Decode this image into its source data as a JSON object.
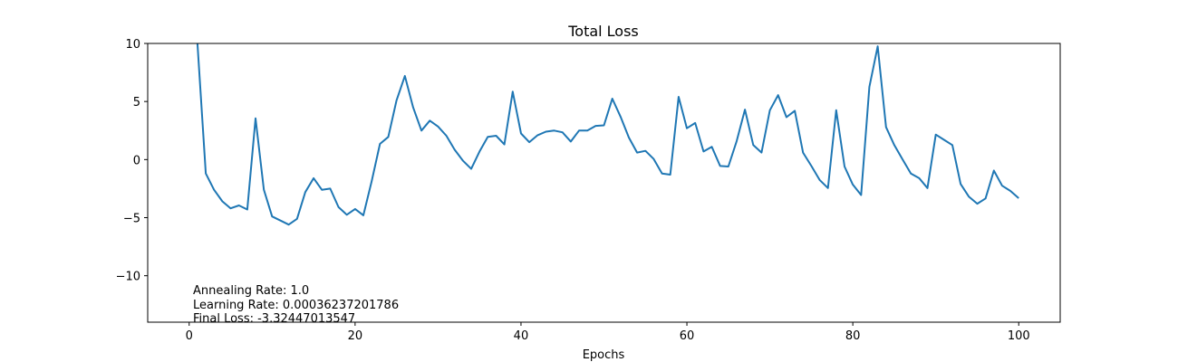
{
  "chart_data": {
    "type": "line",
    "title": "Total Loss",
    "xlabel": "Epochs",
    "ylabel": "",
    "xlim": [
      -5,
      105
    ],
    "ylim": [
      -14,
      10
    ],
    "x_ticks": [
      0,
      20,
      40,
      60,
      80,
      100
    ],
    "x_tick_labels": [
      "0",
      "20",
      "40",
      "60",
      "80",
      "100"
    ],
    "y_ticks": [
      10,
      5,
      0,
      -5,
      -10
    ],
    "y_tick_labels": [
      "10",
      "5",
      "0",
      "−5",
      "−10"
    ],
    "grid": false,
    "series": [
      {
        "color": "#1f77b4",
        "x": [
          1,
          2,
          3,
          4,
          5,
          6,
          7,
          8,
          9,
          10,
          11,
          12,
          13,
          14,
          15,
          16,
          17,
          18,
          19,
          20,
          21,
          22,
          23,
          24,
          25,
          26,
          27,
          28,
          29,
          30,
          31,
          32,
          33,
          34,
          35,
          36,
          37,
          38,
          39,
          40,
          41,
          42,
          43,
          44,
          45,
          46,
          47,
          48,
          49,
          50,
          51,
          52,
          53,
          54,
          55,
          56,
          57,
          58,
          59,
          60,
          61,
          62,
          63,
          64,
          65,
          66,
          67,
          68,
          69,
          70,
          71,
          72,
          73,
          74,
          75,
          76,
          77,
          78,
          79,
          80,
          81,
          82,
          83,
          84,
          85,
          86,
          87,
          88,
          89,
          90,
          91,
          92,
          93,
          94,
          95,
          96,
          97,
          98,
          99,
          100
        ],
        "y": [
          10.0,
          -1.2,
          -2.6,
          -3.6,
          -4.2,
          -3.95,
          -4.3,
          3.55,
          -2.6,
          -4.9,
          -5.25,
          -5.6,
          -5.1,
          -2.8,
          -1.6,
          -2.6,
          -2.5,
          -4.1,
          -4.75,
          -4.25,
          -4.8,
          -1.85,
          1.35,
          1.95,
          5.1,
          7.2,
          4.5,
          2.5,
          3.35,
          2.85,
          2.05,
          0.85,
          -0.1,
          -0.8,
          0.7,
          1.95,
          2.05,
          1.3,
          5.85,
          2.25,
          1.5,
          2.1,
          2.4,
          2.5,
          2.35,
          1.55,
          2.5,
          2.5,
          2.9,
          2.95,
          5.25,
          3.7,
          1.9,
          0.6,
          0.75,
          0.05,
          -1.2,
          -1.3,
          5.4,
          2.7,
          3.15,
          0.7,
          1.1,
          -0.55,
          -0.6,
          1.6,
          4.3,
          1.25,
          0.6,
          4.25,
          5.55,
          3.65,
          4.2,
          0.6,
          -0.55,
          -1.75,
          -2.45,
          4.25,
          -0.6,
          -2.15,
          -3.05,
          6.25,
          9.75,
          2.8,
          1.25,
          0.0,
          -1.2,
          -1.6,
          -2.45,
          2.15,
          1.7,
          1.25,
          -2.1,
          -3.2,
          -3.8,
          -3.35,
          -0.95,
          -2.25,
          -2.7,
          -3.32447013547
        ]
      }
    ],
    "annotations": [
      "Annealing Rate: 1.0",
      "Learning Rate: 0.00036237201786",
      "Final Loss: -3.32447013547"
    ]
  }
}
